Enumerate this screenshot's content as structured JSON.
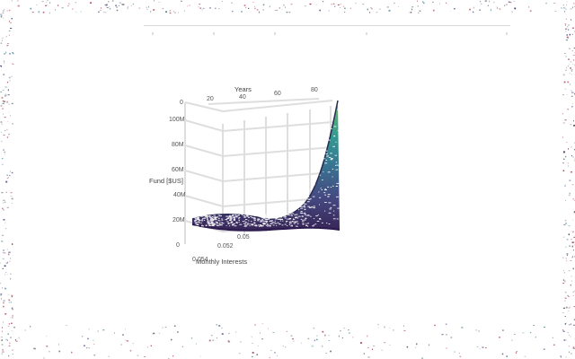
{
  "chart_data": {
    "type": "surface3d",
    "title": "",
    "x_axis": {
      "label": "Years",
      "ticks": [
        "0",
        "20",
        "40",
        "60",
        "80"
      ],
      "range": [
        0,
        90
      ]
    },
    "y_axis": {
      "label": "Monthly Interests",
      "ticks": [
        "0.05",
        "0.052",
        "0.054"
      ],
      "range": [
        0.048,
        0.055
      ]
    },
    "z_axis": {
      "label": "Fund [$US]",
      "ticks": [
        "0",
        "20M",
        "40M",
        "60M",
        "80M",
        "100M"
      ],
      "range": [
        0,
        110000000
      ]
    },
    "grid": true,
    "colorscale": [
      "#2d1a4e",
      "#3b3f7a",
      "#2f6d8c",
      "#26958a",
      "#4aa870",
      "#90c048"
    ],
    "surface": {
      "description_values": {
        "years": [
          0,
          20,
          40,
          60,
          80,
          90
        ],
        "fund_at_low_interest": [
          20000000,
          20500000,
          21000000,
          22000000,
          24000000,
          18000000
        ],
        "fund_at_high_interest": [
          20000000,
          22000000,
          20000000,
          26000000,
          60000000,
          108000000
        ]
      }
    }
  }
}
